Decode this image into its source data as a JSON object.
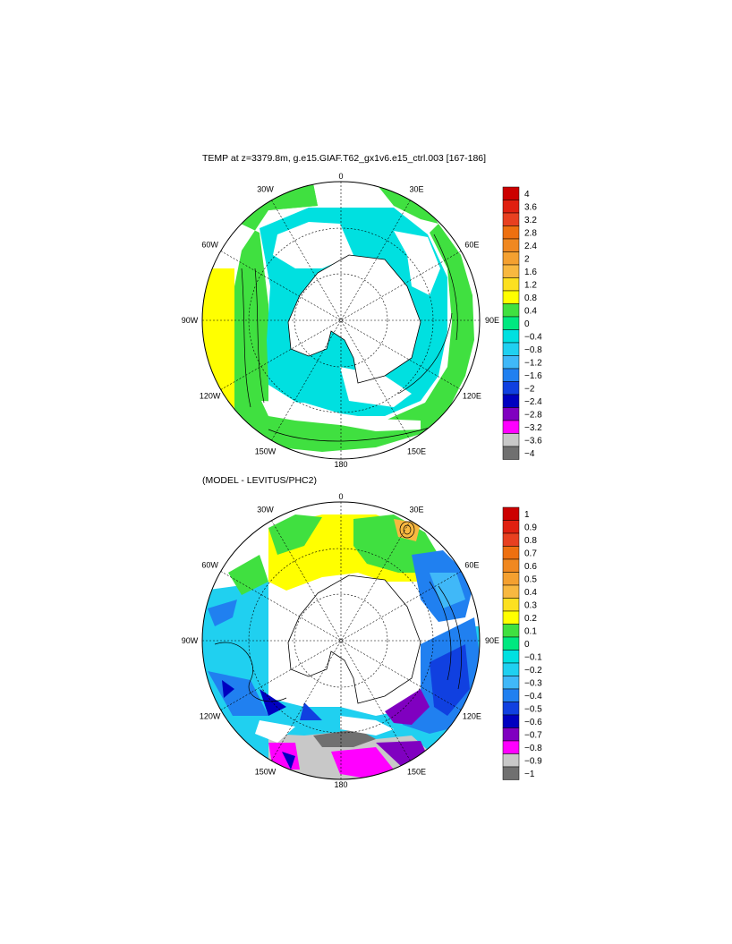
{
  "panels": [
    {
      "id": "top",
      "title": "TEMP at z=3379.8m, g.e15.GIAF.T62_gx1v6.e15_ctrl.003 [167-186]",
      "lon_labels": [
        "0",
        "30E",
        "60E",
        "90E",
        "120E",
        "150E",
        "180",
        "150W",
        "120W",
        "90W",
        "60W",
        "30W"
      ],
      "colorbar": {
        "labels": [
          "4",
          "3.6",
          "3.2",
          "2.8",
          "2.4",
          "2",
          "1.6",
          "1.2",
          "0.8",
          "0.4",
          "0",
          "−0.4",
          "−0.8",
          "−1.2",
          "−1.6",
          "−2",
          "−2.4",
          "−2.8",
          "−3.2",
          "−3.6",
          "−4"
        ],
        "colors": [
          "#cc0000",
          "#e02010",
          "#e84020",
          "#ee7010",
          "#f08820",
          "#f4a030",
          "#f8b840",
          "#fce020",
          "#ffff00",
          "#40e040",
          "#00e880",
          "#00e0e0",
          "#20d0f0",
          "#40b8f8",
          "#2080f0",
          "#1040e0",
          "#0000c0",
          "#8000c0",
          "#ff00ff",
          "#c8c8c8",
          "#707070"
        ]
      }
    },
    {
      "id": "bottom",
      "title": "(MODEL - LEVITUS/PHC2)",
      "lon_labels": [
        "0",
        "30E",
        "60E",
        "90E",
        "120E",
        "150E",
        "180",
        "150W",
        "120W",
        "90W",
        "60W",
        "30W"
      ],
      "colorbar": {
        "labels": [
          "1",
          "0.9",
          "0.8",
          "0.7",
          "0.6",
          "0.5",
          "0.4",
          "0.3",
          "0.2",
          "0.1",
          "0",
          "−0.1",
          "−0.2",
          "−0.3",
          "−0.4",
          "−0.5",
          "−0.6",
          "−0.7",
          "−0.8",
          "−0.9",
          "−1"
        ],
        "colors": [
          "#cc0000",
          "#e02010",
          "#e84020",
          "#ee7010",
          "#f08820",
          "#f4a030",
          "#f8b840",
          "#fce020",
          "#ffff00",
          "#40e040",
          "#00e880",
          "#00e0e0",
          "#20d0f0",
          "#40b8f8",
          "#2080f0",
          "#1040e0",
          "#0000c0",
          "#8000c0",
          "#ff00ff",
          "#c8c8c8",
          "#707070"
        ]
      }
    }
  ]
}
